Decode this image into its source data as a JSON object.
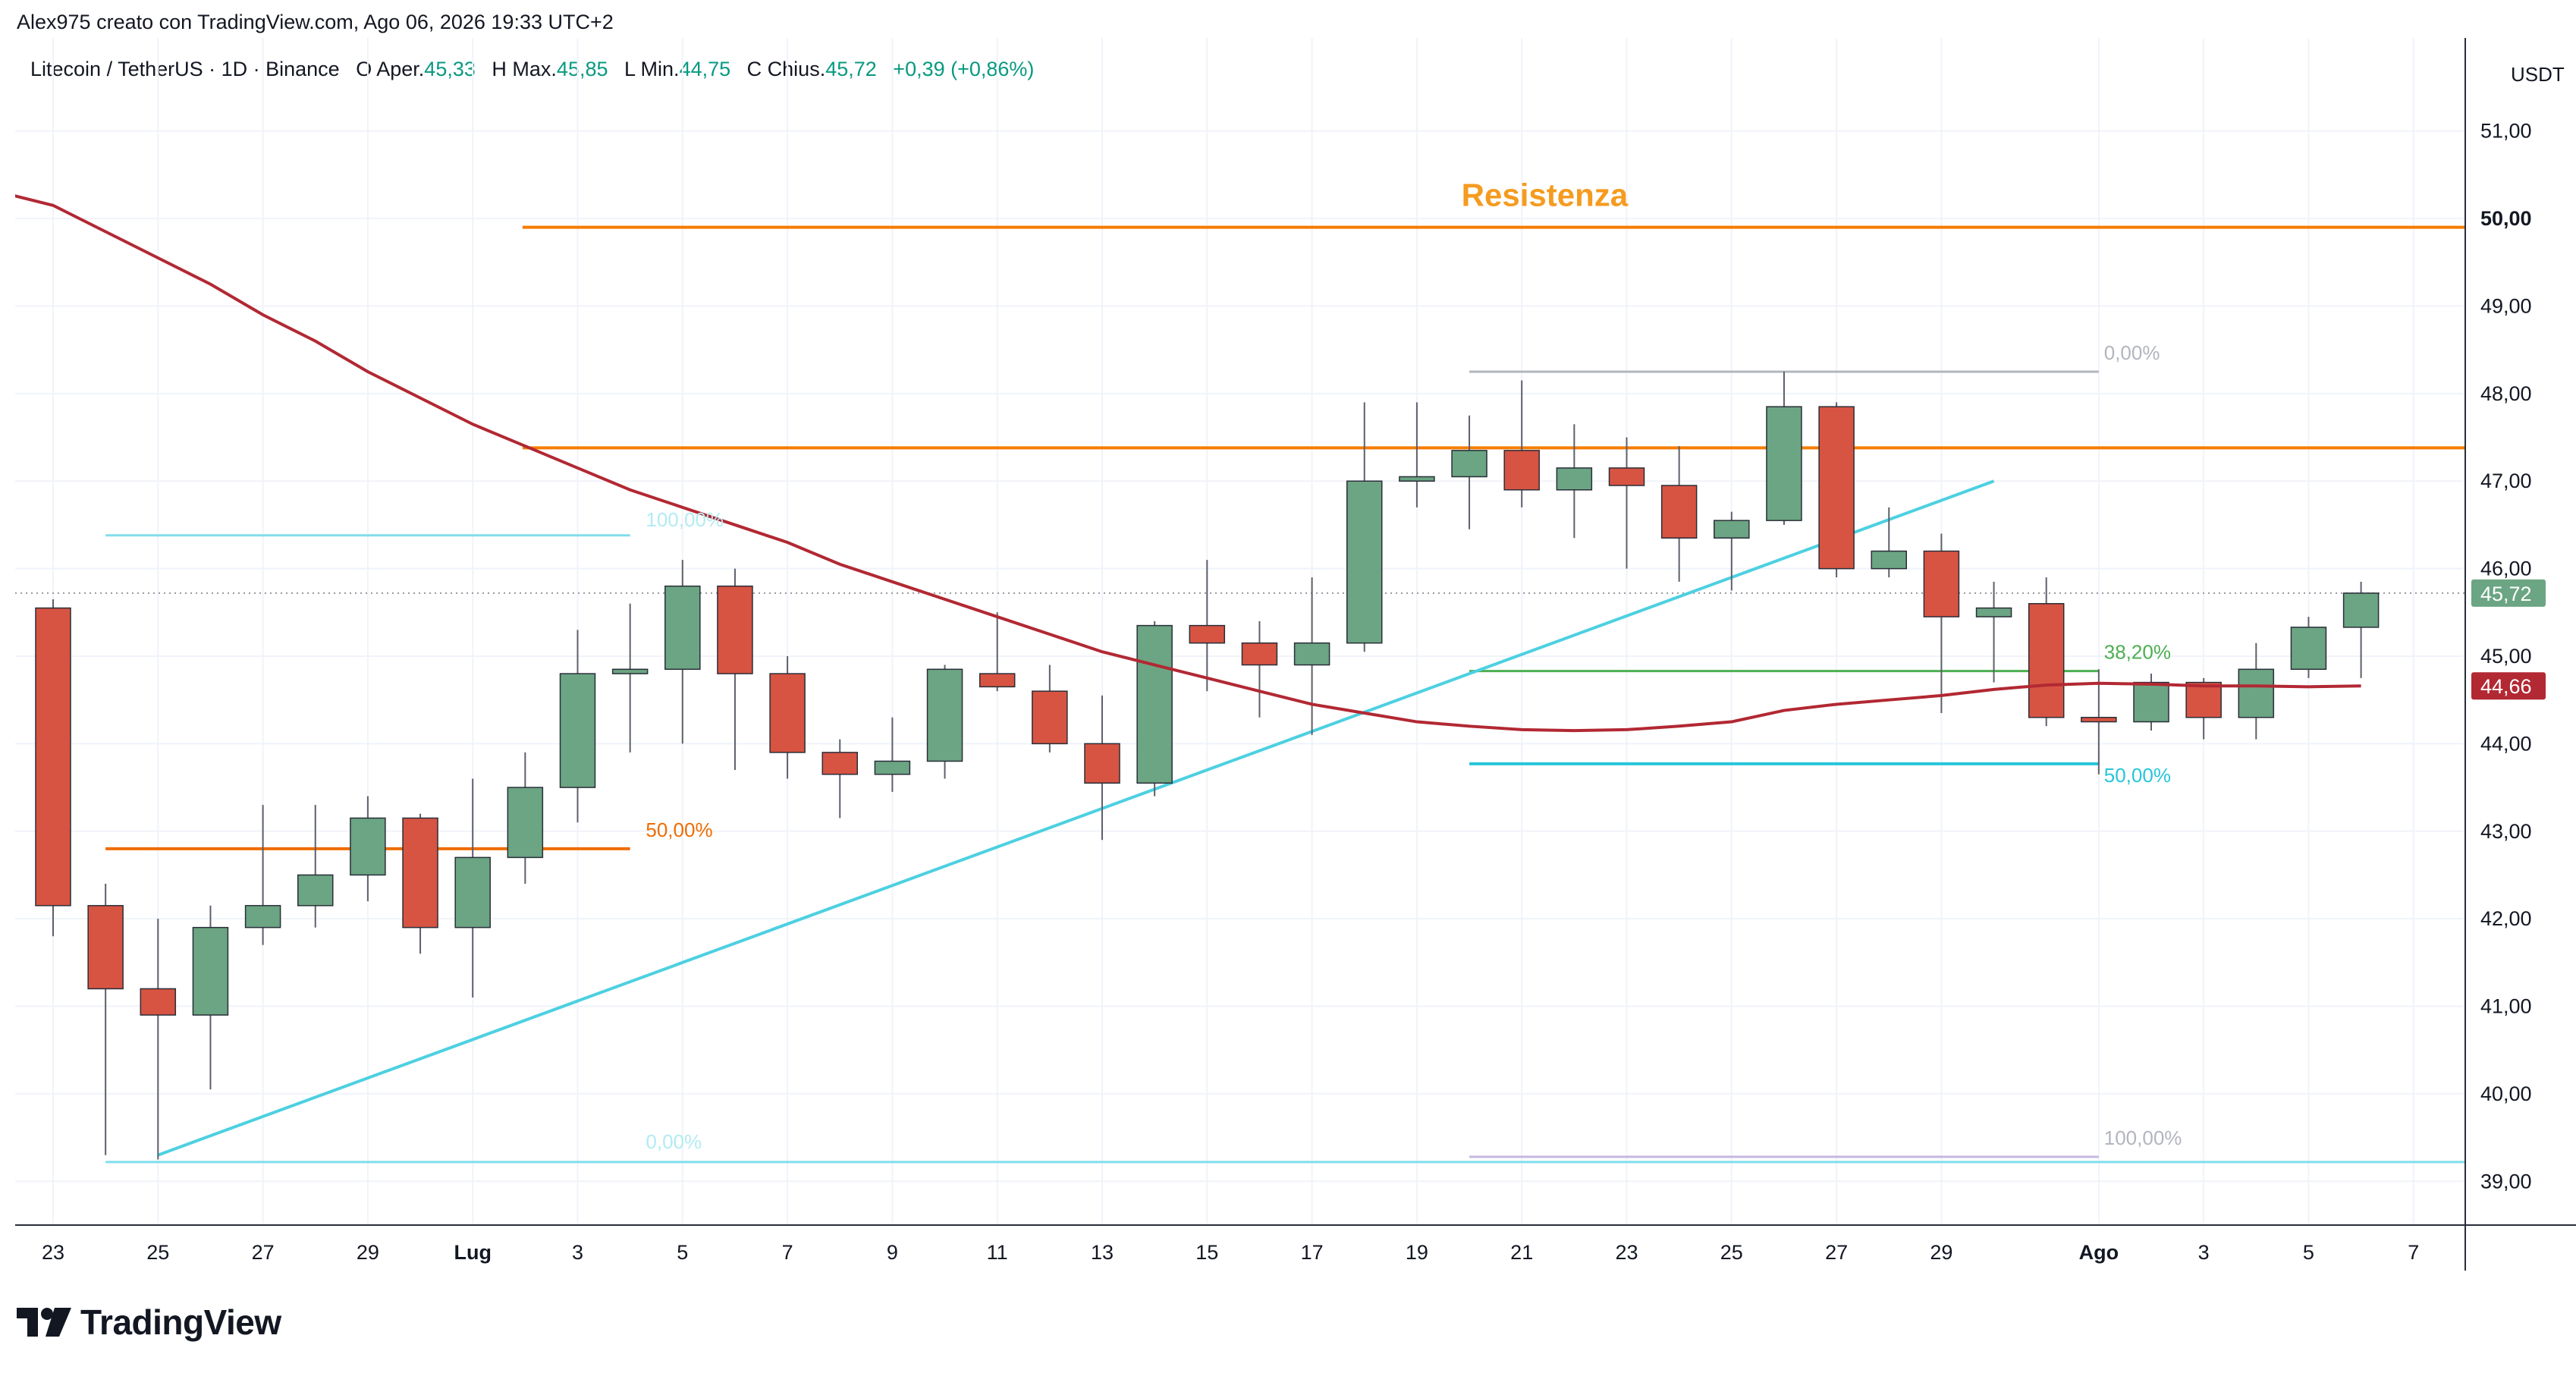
{
  "header": {
    "attribution": "Alex975 creato con TradingView.com, Ago 06, 2026 19:33 UTC+2"
  },
  "legend": {
    "symbol": "Litecoin / TetherUS · 1D · Binance",
    "open_label": "O",
    "open_text": "Aper.",
    "open": "45,33",
    "high_label": "H",
    "high_text": "Max.",
    "high": "45,85",
    "low_label": "L",
    "low_text": "Min.",
    "low": "44,75",
    "close_label": "C",
    "close_text": "Chius.",
    "close": "45,72",
    "change": "+0,39 (+0,86%)"
  },
  "footer": {
    "brand": "TradingView"
  },
  "colors": {
    "up": "#6ba583",
    "down": "#d75442",
    "ma": "#b22833",
    "trendline": "#4dd0e1",
    "resistance": "#f57c00",
    "fib_orange": "#ef6c00",
    "fib_green": "#4caf50",
    "fib_gray": "#b2b5be"
  },
  "chart_data": {
    "type": "candlestick",
    "currency": "USDT",
    "y_ticks": [
      "39,00",
      "40,00",
      "41,00",
      "42,00",
      "43,00",
      "44,00",
      "45,00",
      "46,00",
      "47,00",
      "48,00",
      "49,00",
      "50,00",
      "51,00"
    ],
    "ylim": [
      38.5,
      51.5
    ],
    "x_ticks": [
      {
        "day": 0,
        "label": "23"
      },
      {
        "day": 2,
        "label": "25"
      },
      {
        "day": 4,
        "label": "27"
      },
      {
        "day": 6,
        "label": "29"
      },
      {
        "day": 8,
        "label": "Lug",
        "bold": true
      },
      {
        "day": 10,
        "label": "3"
      },
      {
        "day": 12,
        "label": "5"
      },
      {
        "day": 14,
        "label": "7"
      },
      {
        "day": 16,
        "label": "9"
      },
      {
        "day": 18,
        "label": "11"
      },
      {
        "day": 20,
        "label": "13"
      },
      {
        "day": 22,
        "label": "15"
      },
      {
        "day": 24,
        "label": "17"
      },
      {
        "day": 26,
        "label": "19"
      },
      {
        "day": 28,
        "label": "21"
      },
      {
        "day": 30,
        "label": "23"
      },
      {
        "day": 32,
        "label": "25"
      },
      {
        "day": 34,
        "label": "27"
      },
      {
        "day": 36,
        "label": "29"
      },
      {
        "day": 39,
        "label": "Ago",
        "bold": true
      },
      {
        "day": 41,
        "label": "3"
      },
      {
        "day": 43,
        "label": "5"
      },
      {
        "day": 45,
        "label": "7"
      }
    ],
    "candles": [
      {
        "d": 0,
        "o": 45.55,
        "h": 45.65,
        "l": 41.8,
        "c": 42.15
      },
      {
        "d": 1,
        "o": 42.15,
        "h": 42.4,
        "l": 39.3,
        "c": 41.2
      },
      {
        "d": 2,
        "o": 41.2,
        "h": 42.0,
        "l": 39.25,
        "c": 40.9
      },
      {
        "d": 3,
        "o": 40.9,
        "h": 42.15,
        "l": 40.05,
        "c": 41.9
      },
      {
        "d": 4,
        "o": 41.9,
        "h": 43.3,
        "l": 41.7,
        "c": 42.15
      },
      {
        "d": 5,
        "o": 42.15,
        "h": 43.3,
        "l": 41.9,
        "c": 42.5
      },
      {
        "d": 6,
        "o": 42.5,
        "h": 43.4,
        "l": 42.2,
        "c": 43.15
      },
      {
        "d": 7,
        "o": 43.15,
        "h": 43.2,
        "l": 41.6,
        "c": 41.9
      },
      {
        "d": 8,
        "o": 41.9,
        "h": 43.6,
        "l": 41.1,
        "c": 42.7
      },
      {
        "d": 9,
        "o": 42.7,
        "h": 43.9,
        "l": 42.4,
        "c": 43.5
      },
      {
        "d": 10,
        "o": 43.5,
        "h": 45.3,
        "l": 43.1,
        "c": 44.8
      },
      {
        "d": 11,
        "o": 44.8,
        "h": 45.6,
        "l": 43.9,
        "c": 44.85
      },
      {
        "d": 12,
        "o": 44.85,
        "h": 46.1,
        "l": 44.0,
        "c": 45.8
      },
      {
        "d": 13,
        "o": 45.8,
        "h": 46.0,
        "l": 43.7,
        "c": 44.8
      },
      {
        "d": 14,
        "o": 44.8,
        "h": 45.0,
        "l": 43.6,
        "c": 43.9
      },
      {
        "d": 15,
        "o": 43.9,
        "h": 44.05,
        "l": 43.15,
        "c": 43.65
      },
      {
        "d": 16,
        "o": 43.65,
        "h": 44.3,
        "l": 43.45,
        "c": 43.8
      },
      {
        "d": 17,
        "o": 43.8,
        "h": 44.9,
        "l": 43.6,
        "c": 44.85
      },
      {
        "d": 18,
        "o": 44.8,
        "h": 45.5,
        "l": 44.6,
        "c": 44.65
      },
      {
        "d": 19,
        "o": 44.6,
        "h": 44.9,
        "l": 43.9,
        "c": 44.0
      },
      {
        "d": 20,
        "o": 44.0,
        "h": 44.55,
        "l": 42.9,
        "c": 43.55
      },
      {
        "d": 21,
        "o": 43.55,
        "h": 45.4,
        "l": 43.4,
        "c": 45.35
      },
      {
        "d": 22,
        "o": 45.35,
        "h": 46.1,
        "l": 44.6,
        "c": 45.15
      },
      {
        "d": 23,
        "o": 45.15,
        "h": 45.4,
        "l": 44.3,
        "c": 44.9
      },
      {
        "d": 24,
        "o": 44.9,
        "h": 45.9,
        "l": 44.1,
        "c": 45.15
      },
      {
        "d": 25,
        "o": 45.15,
        "h": 47.9,
        "l": 45.05,
        "c": 47.0
      },
      {
        "d": 26,
        "o": 47.0,
        "h": 47.9,
        "l": 46.7,
        "c": 47.05
      },
      {
        "d": 27,
        "o": 47.05,
        "h": 47.75,
        "l": 46.45,
        "c": 47.35
      },
      {
        "d": 28,
        "o": 47.35,
        "h": 48.15,
        "l": 46.7,
        "c": 46.9
      },
      {
        "d": 29,
        "o": 46.9,
        "h": 47.65,
        "l": 46.35,
        "c": 47.15
      },
      {
        "d": 30,
        "o": 47.15,
        "h": 47.5,
        "l": 46.0,
        "c": 46.95
      },
      {
        "d": 31,
        "o": 46.95,
        "h": 47.4,
        "l": 45.85,
        "c": 46.35
      },
      {
        "d": 32,
        "o": 46.35,
        "h": 46.65,
        "l": 45.75,
        "c": 46.55
      },
      {
        "d": 33,
        "o": 46.55,
        "h": 48.25,
        "l": 46.5,
        "c": 47.85
      },
      {
        "d": 34,
        "o": 47.85,
        "h": 47.9,
        "l": 45.9,
        "c": 46.0
      },
      {
        "d": 35,
        "o": 46.0,
        "h": 46.7,
        "l": 45.9,
        "c": 46.2
      },
      {
        "d": 36,
        "o": 46.2,
        "h": 46.4,
        "l": 44.35,
        "c": 45.45
      },
      {
        "d": 37,
        "o": 45.45,
        "h": 45.85,
        "l": 44.7,
        "c": 45.55
      },
      {
        "d": 38,
        "o": 45.6,
        "h": 45.9,
        "l": 44.2,
        "c": 44.3
      },
      {
        "d": 39,
        "o": 44.3,
        "h": 44.85,
        "l": 43.65,
        "c": 44.25
      },
      {
        "d": 40,
        "o": 44.25,
        "h": 44.8,
        "l": 44.15,
        "c": 44.7
      },
      {
        "d": 41,
        "o": 44.7,
        "h": 44.75,
        "l": 44.05,
        "c": 44.3
      },
      {
        "d": 42,
        "o": 44.3,
        "h": 45.15,
        "l": 44.05,
        "c": 44.85
      },
      {
        "d": 43,
        "o": 44.85,
        "h": 45.45,
        "l": 44.75,
        "c": 45.33
      },
      {
        "d": 44,
        "o": 45.33,
        "h": 45.85,
        "l": 44.75,
        "c": 45.72
      }
    ],
    "moving_average": [
      {
        "d": -1,
        "v": 50.3
      },
      {
        "d": 0,
        "v": 50.15
      },
      {
        "d": 1,
        "v": 49.85
      },
      {
        "d": 2,
        "v": 49.55
      },
      {
        "d": 3,
        "v": 49.25
      },
      {
        "d": 4,
        "v": 48.9
      },
      {
        "d": 5,
        "v": 48.6
      },
      {
        "d": 6,
        "v": 48.25
      },
      {
        "d": 7,
        "v": 47.95
      },
      {
        "d": 8,
        "v": 47.65
      },
      {
        "d": 9,
        "v": 47.4
      },
      {
        "d": 10,
        "v": 47.15
      },
      {
        "d": 11,
        "v": 46.9
      },
      {
        "d": 12,
        "v": 46.7
      },
      {
        "d": 13,
        "v": 46.5
      },
      {
        "d": 14,
        "v": 46.3
      },
      {
        "d": 15,
        "v": 46.05
      },
      {
        "d": 16,
        "v": 45.85
      },
      {
        "d": 17,
        "v": 45.65
      },
      {
        "d": 18,
        "v": 45.45
      },
      {
        "d": 19,
        "v": 45.25
      },
      {
        "d": 20,
        "v": 45.05
      },
      {
        "d": 21,
        "v": 44.9
      },
      {
        "d": 22,
        "v": 44.75
      },
      {
        "d": 23,
        "v": 44.6
      },
      {
        "d": 24,
        "v": 44.45
      },
      {
        "d": 25,
        "v": 44.35
      },
      {
        "d": 26,
        "v": 44.25
      },
      {
        "d": 27,
        "v": 44.2
      },
      {
        "d": 28,
        "v": 44.16
      },
      {
        "d": 29,
        "v": 44.15
      },
      {
        "d": 30,
        "v": 44.16
      },
      {
        "d": 31,
        "v": 44.2
      },
      {
        "d": 32,
        "v": 44.25
      },
      {
        "d": 33,
        "v": 44.38
      },
      {
        "d": 34,
        "v": 44.45
      },
      {
        "d": 35,
        "v": 44.5
      },
      {
        "d": 36,
        "v": 44.55
      },
      {
        "d": 37,
        "v": 44.62
      },
      {
        "d": 38,
        "v": 44.67
      },
      {
        "d": 39,
        "v": 44.69
      },
      {
        "d": 40,
        "v": 44.68
      },
      {
        "d": 41,
        "v": 44.66
      },
      {
        "d": 42,
        "v": 44.66
      },
      {
        "d": 43,
        "v": 44.65
      },
      {
        "d": 44,
        "v": 44.66
      }
    ],
    "price_tags": [
      {
        "value": 45.72,
        "label": "45,72",
        "color": "#6ba583"
      },
      {
        "value": 44.66,
        "label": "44,66",
        "color": "#b22833"
      }
    ],
    "current_price_line": 45.72,
    "annotations": {
      "resistance": {
        "label": "Resistenza",
        "value": 49.9,
        "from_day": 8.95
      },
      "resistance2": {
        "value": 47.38,
        "from_day": 8.95
      },
      "trendline": {
        "from": {
          "d": 2,
          "v": 39.3
        },
        "to": {
          "d": 37,
          "v": 47.0
        }
      },
      "fib_blue_top": {
        "label": "100,00%",
        "value": 46.38,
        "from_day": 1,
        "to_day": 11
      },
      "fib_blue_bottom": {
        "label": "0,00%",
        "value": 39.22,
        "from_day": 1,
        "to_day": 46.5
      },
      "fib_orange_mid": {
        "label": "50,00%",
        "value": 42.8,
        "from_day": 1,
        "to_day": 11
      },
      "fib_gray_top": {
        "label": "0,00%",
        "value": 48.25,
        "from_day": 27,
        "to_day": 39
      },
      "fib_green_mid": {
        "label": "38,20%",
        "value": 44.83,
        "from_day": 27,
        "to_day": 39
      },
      "fib_teal_mid": {
        "label": "50,00%",
        "value": 43.77,
        "from_day": 27,
        "to_day": 39
      },
      "fib_gray_bottom": {
        "label": "100,00%",
        "value": 39.28,
        "from_day": 27,
        "to_day": 39
      }
    }
  }
}
